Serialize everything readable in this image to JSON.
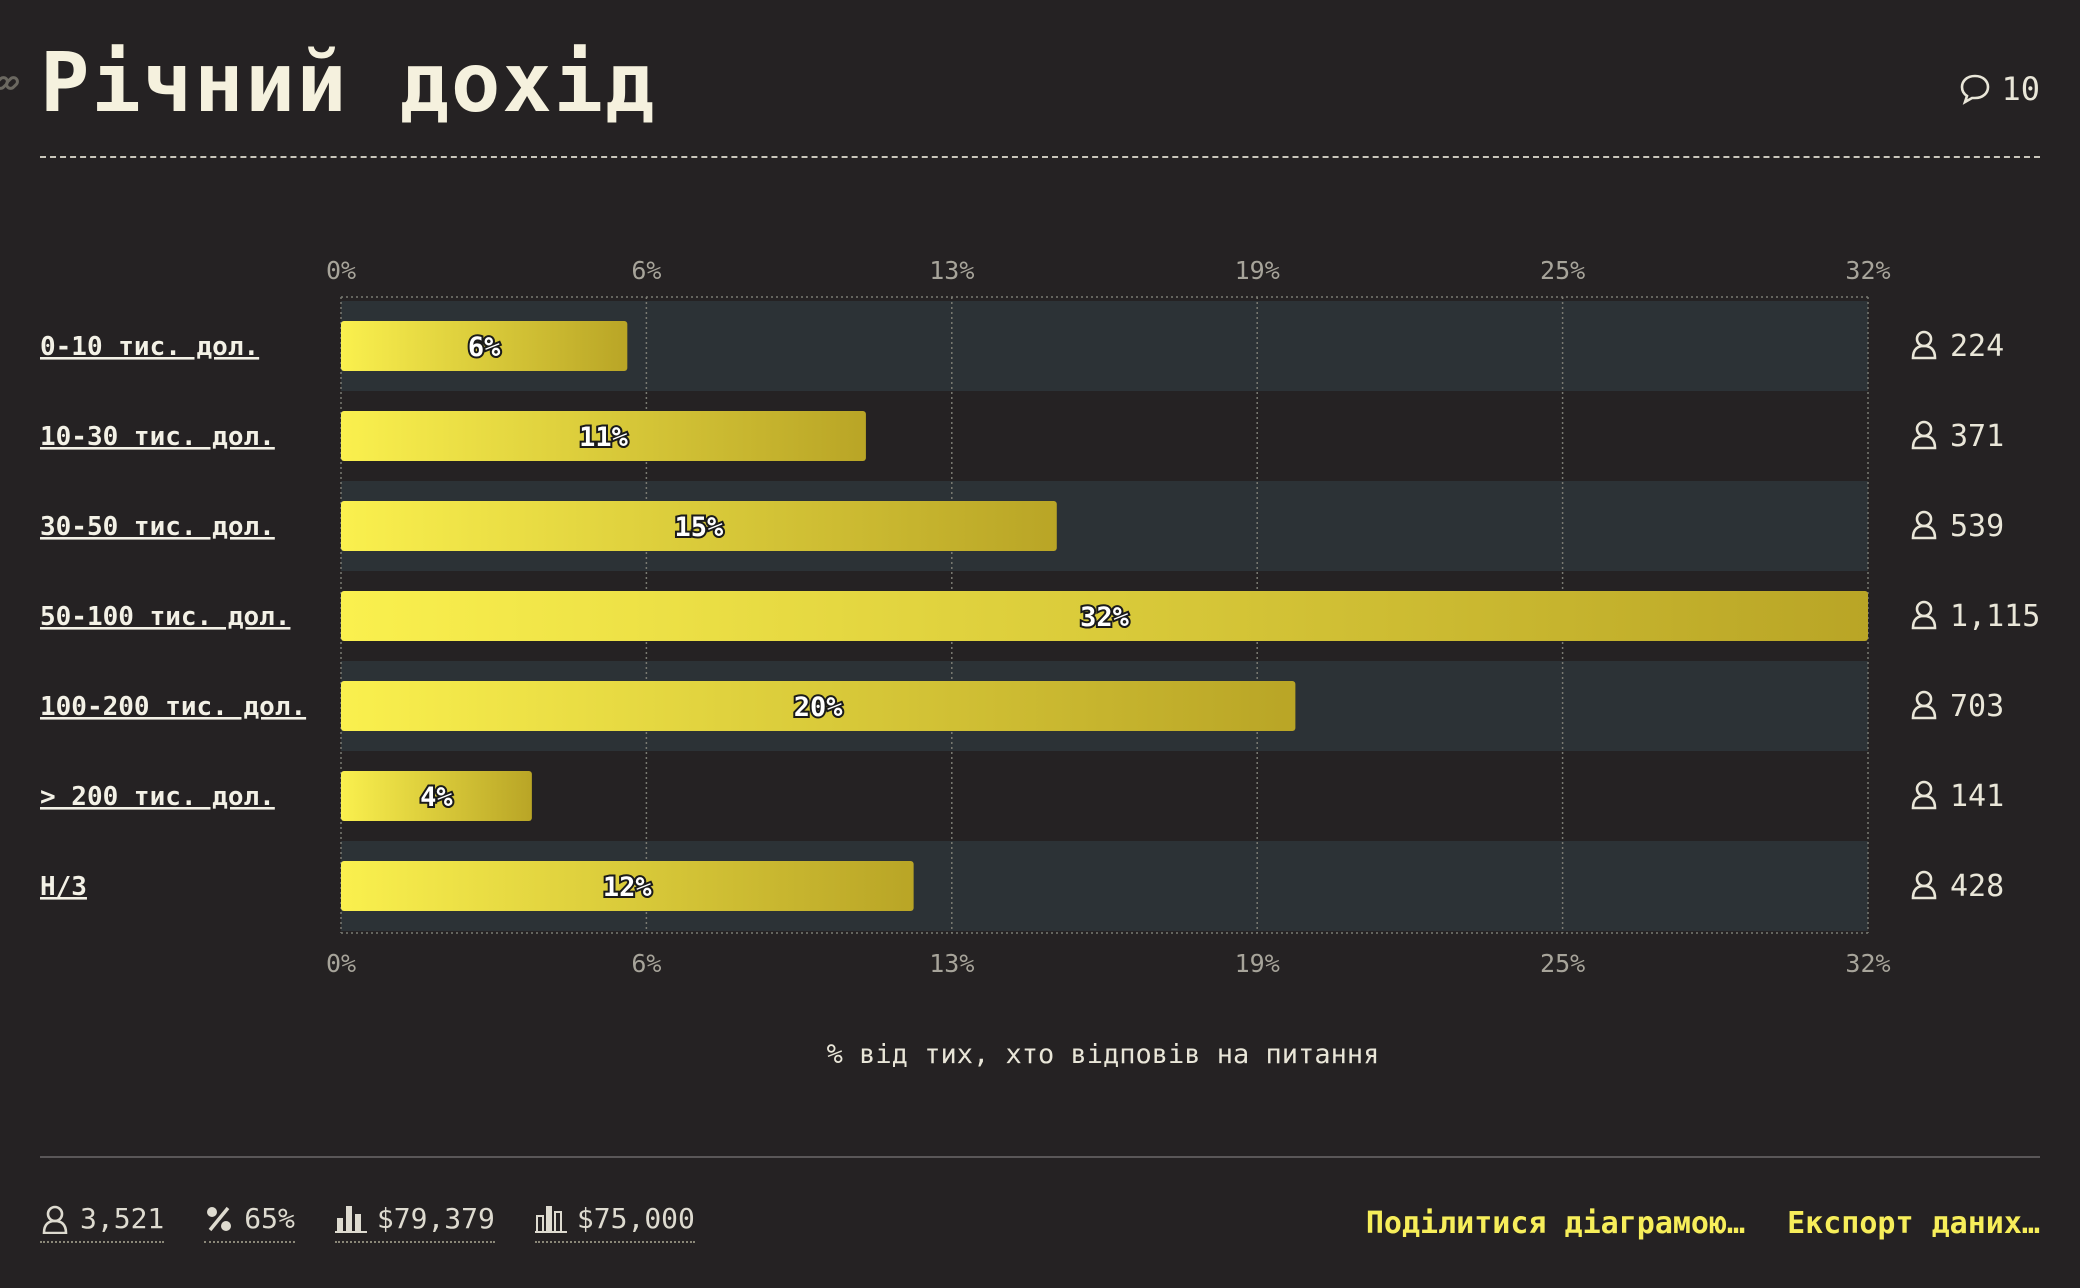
{
  "header": {
    "title": "Річний дохід",
    "comment_count": "10"
  },
  "chart_data": {
    "type": "bar",
    "orientation": "horizontal",
    "title": "Річний дохід",
    "categories": [
      "0-10 тис. дол.",
      "10-30 тис. дол.",
      "30-50 тис. дол.",
      "50-100 тис. дол.",
      "100-200 тис. дол.",
      "> 200 тис. дол.",
      "Н/З"
    ],
    "values": [
      6,
      11,
      15,
      32,
      20,
      4,
      12
    ],
    "value_labels": [
      "6%",
      "11%",
      "15%",
      "32%",
      "20%",
      "4%",
      "12%"
    ],
    "respondents": [
      "224",
      "371",
      "539",
      "1,115",
      "703",
      "141",
      "428"
    ],
    "ticks": [
      "0%",
      "6%",
      "13%",
      "19%",
      "25%",
      "32%"
    ],
    "xlim": [
      0,
      32
    ],
    "xlabel": "% від тих, хто відповів на питання",
    "grid": true,
    "colors": {
      "bar_start": "#faf04e",
      "bar_end": "#b9a526",
      "band": "#2c3236"
    }
  },
  "footer": {
    "stats": [
      "3,521",
      "65%",
      "$79,379",
      "$75,000"
    ],
    "actions": {
      "share": "Поділитися діаграмою…",
      "export": "Експорт даних…"
    }
  }
}
